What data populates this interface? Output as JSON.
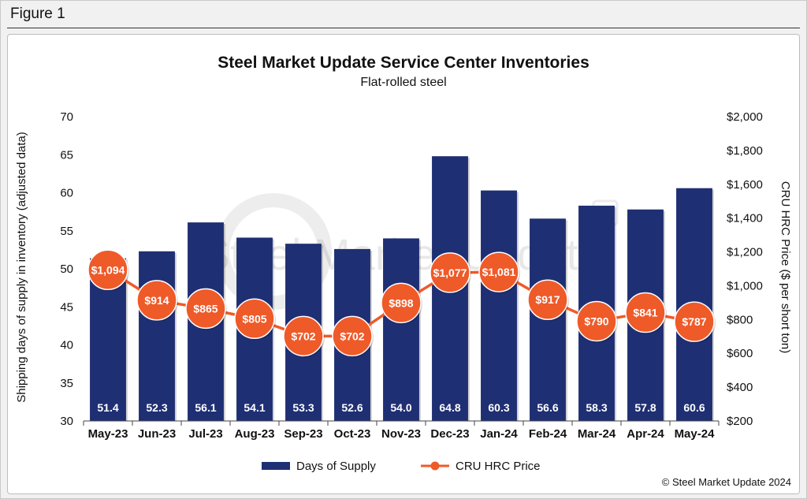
{
  "figure_label": "Figure 1",
  "copyright": "© Steel Market Update 2024",
  "watermark": "Steel Market Update",
  "colors": {
    "bar": "#1f2f73",
    "line": "#ef5a29",
    "label": "#ffffff"
  },
  "chart_data": {
    "type": "bar",
    "title": "Steel Market Update Service Center Inventories",
    "subtitle": "Flat-rolled steel",
    "ylabel": "Shipping days of supply in inventory (adjusted data)",
    "y2label": "CRU HRC Price ($ per short ton)",
    "ylim": [
      30,
      70
    ],
    "y2lim": [
      200,
      2000
    ],
    "yticks": [
      "70",
      "65",
      "60",
      "55",
      "50",
      "45",
      "40",
      "35",
      "30"
    ],
    "y2ticks": [
      "$2,000",
      "$1,800",
      "$1,600",
      "$1,400",
      "$1,200",
      "$1,000",
      "$800",
      "$600",
      "$400",
      "$200"
    ],
    "categories": [
      "May-23",
      "Jun-23",
      "Jul-23",
      "Aug-23",
      "Sep-23",
      "Oct-23",
      "Nov-23",
      "Dec-23",
      "Jan-24",
      "Feb-24",
      "Mar-24",
      "Apr-24",
      "May-24"
    ],
    "series": [
      {
        "name": "Days of Supply",
        "kind": "bar",
        "axis": "left",
        "values": [
          51.4,
          52.3,
          56.1,
          54.1,
          53.3,
          52.6,
          54.0,
          64.8,
          60.3,
          56.6,
          58.3,
          57.8,
          60.6
        ],
        "labels": [
          "51.4",
          "52.3",
          "56.1",
          "54.1",
          "53.3",
          "52.6",
          "54.0",
          "64.8",
          "60.3",
          "56.6",
          "58.3",
          "57.8",
          "60.6"
        ]
      },
      {
        "name": "CRU HRC Price",
        "kind": "line",
        "axis": "right",
        "values": [
          1094,
          914,
          865,
          805,
          702,
          702,
          898,
          1077,
          1081,
          917,
          790,
          841,
          787
        ],
        "labels": [
          "$1,094",
          "$914",
          "$865",
          "$805",
          "$702",
          "$702",
          "$898",
          "$1,077",
          "$1,081",
          "$917",
          "$790",
          "$841",
          "$787"
        ]
      }
    ],
    "grid": false,
    "legend": "bottom-center"
  }
}
